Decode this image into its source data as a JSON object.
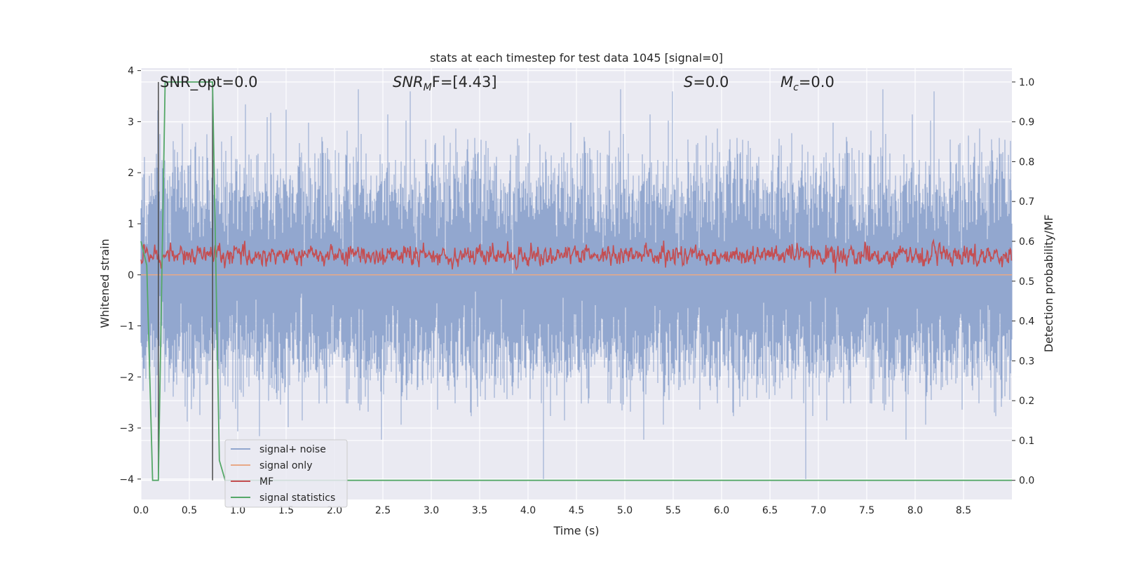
{
  "chart_data": {
    "type": "line",
    "title": "stats at each timestep for test data 1045 [signal=0]",
    "xlabel": "Time (s)",
    "ylabel": "Whitened strain",
    "y2label": "Detection probability/MF",
    "xlim": [
      0.0,
      9.0
    ],
    "ylim": [
      -4.4,
      4.05
    ],
    "y2lim": [
      -0.048,
      1.035
    ],
    "x_ticks": [
      0.0,
      0.5,
      1.0,
      1.5,
      2.0,
      2.5,
      3.0,
      3.5,
      4.0,
      4.5,
      5.0,
      5.5,
      6.0,
      6.5,
      7.0,
      7.5,
      8.0,
      8.5
    ],
    "x_tick_labels": [
      "0.0",
      "0.5",
      "1.0",
      "1.5",
      "2.0",
      "2.5",
      "3.0",
      "3.5",
      "4.0",
      "4.5",
      "5.0",
      "5.5",
      "6.0",
      "6.5",
      "7.0",
      "7.5",
      "8.0",
      "8.5"
    ],
    "y_ticks": [
      4,
      3,
      2,
      1,
      0,
      -1,
      -2,
      -3,
      -4
    ],
    "y_tick_labels": [
      "4",
      "3",
      "2",
      "1",
      "0",
      "−1",
      "−2",
      "−3",
      "−4"
    ],
    "y2_ticks": [
      1.0,
      0.9,
      0.8,
      0.7,
      0.6,
      0.5,
      0.4,
      0.3,
      0.2,
      0.1,
      0.0
    ],
    "y2_tick_labels": [
      "1.0",
      "0.9",
      "0.8",
      "0.7",
      "0.6",
      "0.5",
      "0.4",
      "0.3",
      "0.2",
      "0.1",
      "0.0"
    ],
    "grid": true,
    "legend_position": "lower-left",
    "annotations": {
      "snr_opt": "SNR_opt=0.0",
      "snr_mf_main": "SNR",
      "snr_mf_sub": "M",
      "snr_mf_rest": "F=[4.43]",
      "s_var": "S",
      "s_rest": "=0.0",
      "mc_main": "M",
      "mc_sub": "c",
      "mc_rest": "=0.0"
    },
    "series": [
      {
        "name": "signal+ noise",
        "color": "#92a7cf",
        "axis": "left",
        "kind": "noise",
        "amplitude_envelope": [
          -4.0,
          3.7
        ],
        "sample_rate_hz": 2048
      },
      {
        "name": "signal only",
        "color": "#e8a886",
        "axis": "left",
        "values_summary": "flat at 0"
      },
      {
        "name": "MF",
        "color": "#c44e52",
        "axis": "right",
        "range": [
          0.52,
          0.63
        ]
      },
      {
        "name": "signal statistics",
        "color": "#55a868",
        "axis": "right",
        "x": [
          0.0,
          0.06,
          0.12,
          0.18,
          0.25,
          0.31,
          0.37,
          0.43,
          0.5,
          0.56,
          0.62,
          0.68,
          0.74,
          0.81,
          0.87,
          0.93,
          1.0,
          9.0
        ],
        "y": [
          0.6,
          0.54,
          0.0,
          0.0,
          1.0,
          1.0,
          1.0,
          1.0,
          1.0,
          1.0,
          1.0,
          1.0,
          1.0,
          0.05,
          0.0,
          0.0,
          0.0,
          0.0
        ]
      }
    ],
    "vertical_lines_x": [
      0.18,
      0.74
    ],
    "vertical_lines_y2_range": [
      0.0,
      1.0
    ],
    "vertical_line_color": "#4c4c4c"
  },
  "colors": {
    "axes_background": "#eaeaf2",
    "grid": "#ffffff",
    "text": "#262626"
  }
}
